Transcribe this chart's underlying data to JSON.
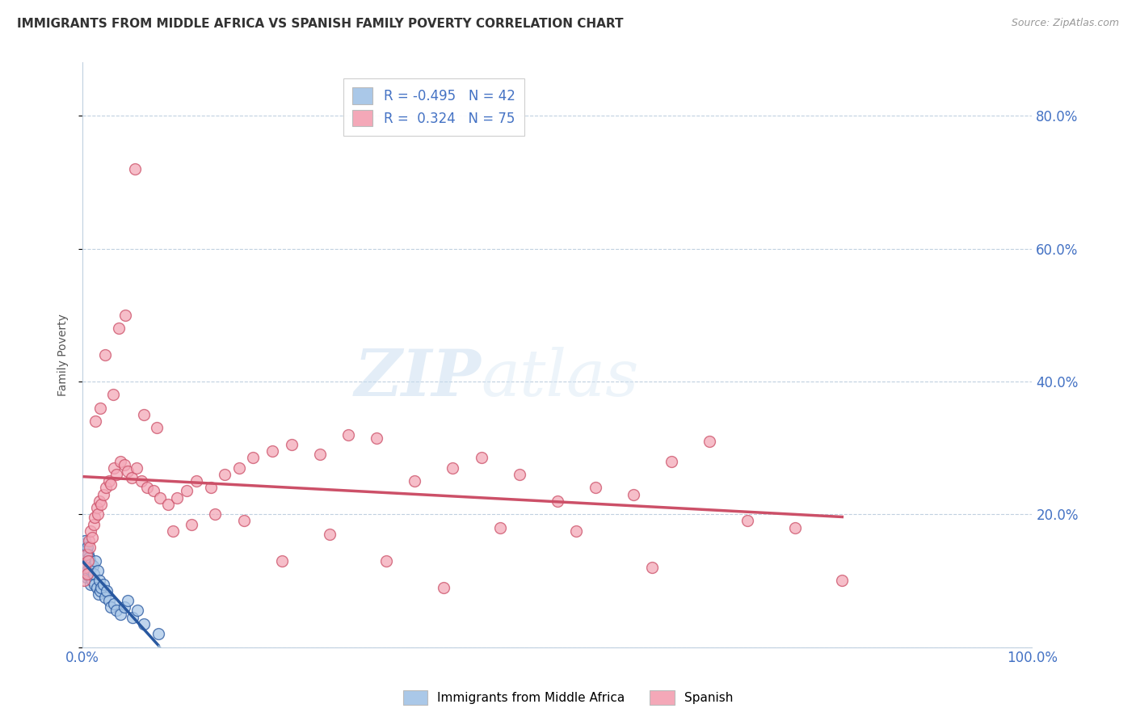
{
  "title": "IMMIGRANTS FROM MIDDLE AFRICA VS SPANISH FAMILY POVERTY CORRELATION CHART",
  "source": "Source: ZipAtlas.com",
  "ylabel": "Family Poverty",
  "legend_label1": "Immigrants from Middle Africa",
  "legend_label2": "Spanish",
  "R1": -0.495,
  "N1": 42,
  "R2": 0.324,
  "N2": 75,
  "color_blue": "#aac8e8",
  "color_pink": "#f4a8b8",
  "line_blue": "#2858a0",
  "line_pink": "#cc5068",
  "line_blue_dashed": "#90b0d0",
  "yticks": [
    0.0,
    0.2,
    0.4,
    0.6,
    0.8
  ],
  "ytick_labels": [
    "",
    "20.0%",
    "40.0%",
    "60.0%",
    "80.0%"
  ],
  "watermark_zip": "ZIP",
  "watermark_atlas": "atlas",
  "blue_points_x": [
    0.001,
    0.002,
    0.002,
    0.003,
    0.003,
    0.004,
    0.004,
    0.005,
    0.005,
    0.006,
    0.006,
    0.007,
    0.007,
    0.008,
    0.008,
    0.009,
    0.009,
    0.01,
    0.011,
    0.012,
    0.013,
    0.014,
    0.015,
    0.016,
    0.017,
    0.018,
    0.019,
    0.02,
    0.022,
    0.024,
    0.026,
    0.028,
    0.03,
    0.033,
    0.036,
    0.04,
    0.044,
    0.048,
    0.053,
    0.058,
    0.065,
    0.08
  ],
  "blue_points_y": [
    0.13,
    0.12,
    0.155,
    0.11,
    0.16,
    0.105,
    0.145,
    0.115,
    0.15,
    0.108,
    0.14,
    0.112,
    0.135,
    0.118,
    0.13,
    0.095,
    0.125,
    0.1,
    0.122,
    0.11,
    0.095,
    0.13,
    0.09,
    0.115,
    0.08,
    0.1,
    0.085,
    0.09,
    0.095,
    0.075,
    0.085,
    0.07,
    0.06,
    0.065,
    0.055,
    0.05,
    0.06,
    0.07,
    0.045,
    0.055,
    0.035,
    0.02
  ],
  "pink_points_x": [
    0.002,
    0.003,
    0.004,
    0.005,
    0.006,
    0.007,
    0.008,
    0.009,
    0.01,
    0.012,
    0.013,
    0.015,
    0.016,
    0.018,
    0.02,
    0.022,
    0.025,
    0.028,
    0.03,
    0.033,
    0.036,
    0.04,
    0.044,
    0.048,
    0.052,
    0.057,
    0.062,
    0.068,
    0.075,
    0.082,
    0.09,
    0.1,
    0.11,
    0.12,
    0.135,
    0.15,
    0.165,
    0.18,
    0.2,
    0.22,
    0.25,
    0.28,
    0.31,
    0.35,
    0.39,
    0.42,
    0.46,
    0.5,
    0.54,
    0.58,
    0.62,
    0.66,
    0.7,
    0.75,
    0.8,
    0.014,
    0.019,
    0.024,
    0.032,
    0.038,
    0.045,
    0.055,
    0.065,
    0.078,
    0.095,
    0.115,
    0.14,
    0.17,
    0.21,
    0.26,
    0.32,
    0.38,
    0.44,
    0.52,
    0.6
  ],
  "pink_points_y": [
    0.1,
    0.12,
    0.14,
    0.11,
    0.13,
    0.16,
    0.15,
    0.175,
    0.165,
    0.185,
    0.195,
    0.21,
    0.2,
    0.22,
    0.215,
    0.23,
    0.24,
    0.25,
    0.245,
    0.27,
    0.26,
    0.28,
    0.275,
    0.265,
    0.255,
    0.27,
    0.25,
    0.24,
    0.235,
    0.225,
    0.215,
    0.225,
    0.235,
    0.25,
    0.24,
    0.26,
    0.27,
    0.285,
    0.295,
    0.305,
    0.29,
    0.32,
    0.315,
    0.25,
    0.27,
    0.285,
    0.26,
    0.22,
    0.24,
    0.23,
    0.28,
    0.31,
    0.19,
    0.18,
    0.1,
    0.34,
    0.36,
    0.44,
    0.38,
    0.48,
    0.5,
    0.72,
    0.35,
    0.33,
    0.175,
    0.185,
    0.2,
    0.19,
    0.13,
    0.17,
    0.13,
    0.09,
    0.18,
    0.175,
    0.12
  ]
}
